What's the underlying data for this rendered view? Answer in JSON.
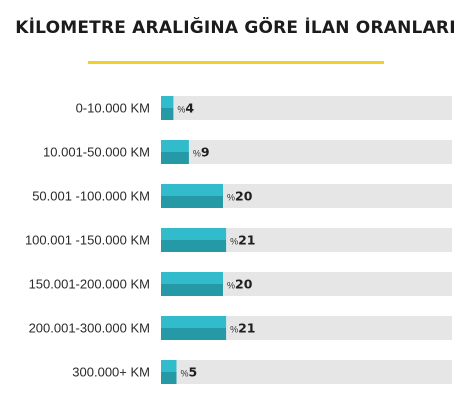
{
  "chart_data": {
    "type": "bar",
    "orientation": "horizontal",
    "title": "KİLOMETRE ARALIĞINA GÖRE İLAN ORANLARI",
    "categories": [
      "0-10.000 KM",
      "10.001-50.000 KM",
      "50.001 -100.000 KM",
      "100.001 -150.000 KM",
      "150.001-200.000 KM",
      "200.001-300.000 KM",
      "300.000+ KM"
    ],
    "values": [
      4,
      9,
      20,
      21,
      20,
      21,
      5
    ],
    "value_prefix": "%",
    "xlim": [
      0,
      100
    ],
    "grid": false,
    "colors": {
      "bar_top": "#32bccb",
      "bar_bottom": "#2699a6",
      "track": "#e6e6e6",
      "title_underline": "#f2cf2a"
    }
  }
}
